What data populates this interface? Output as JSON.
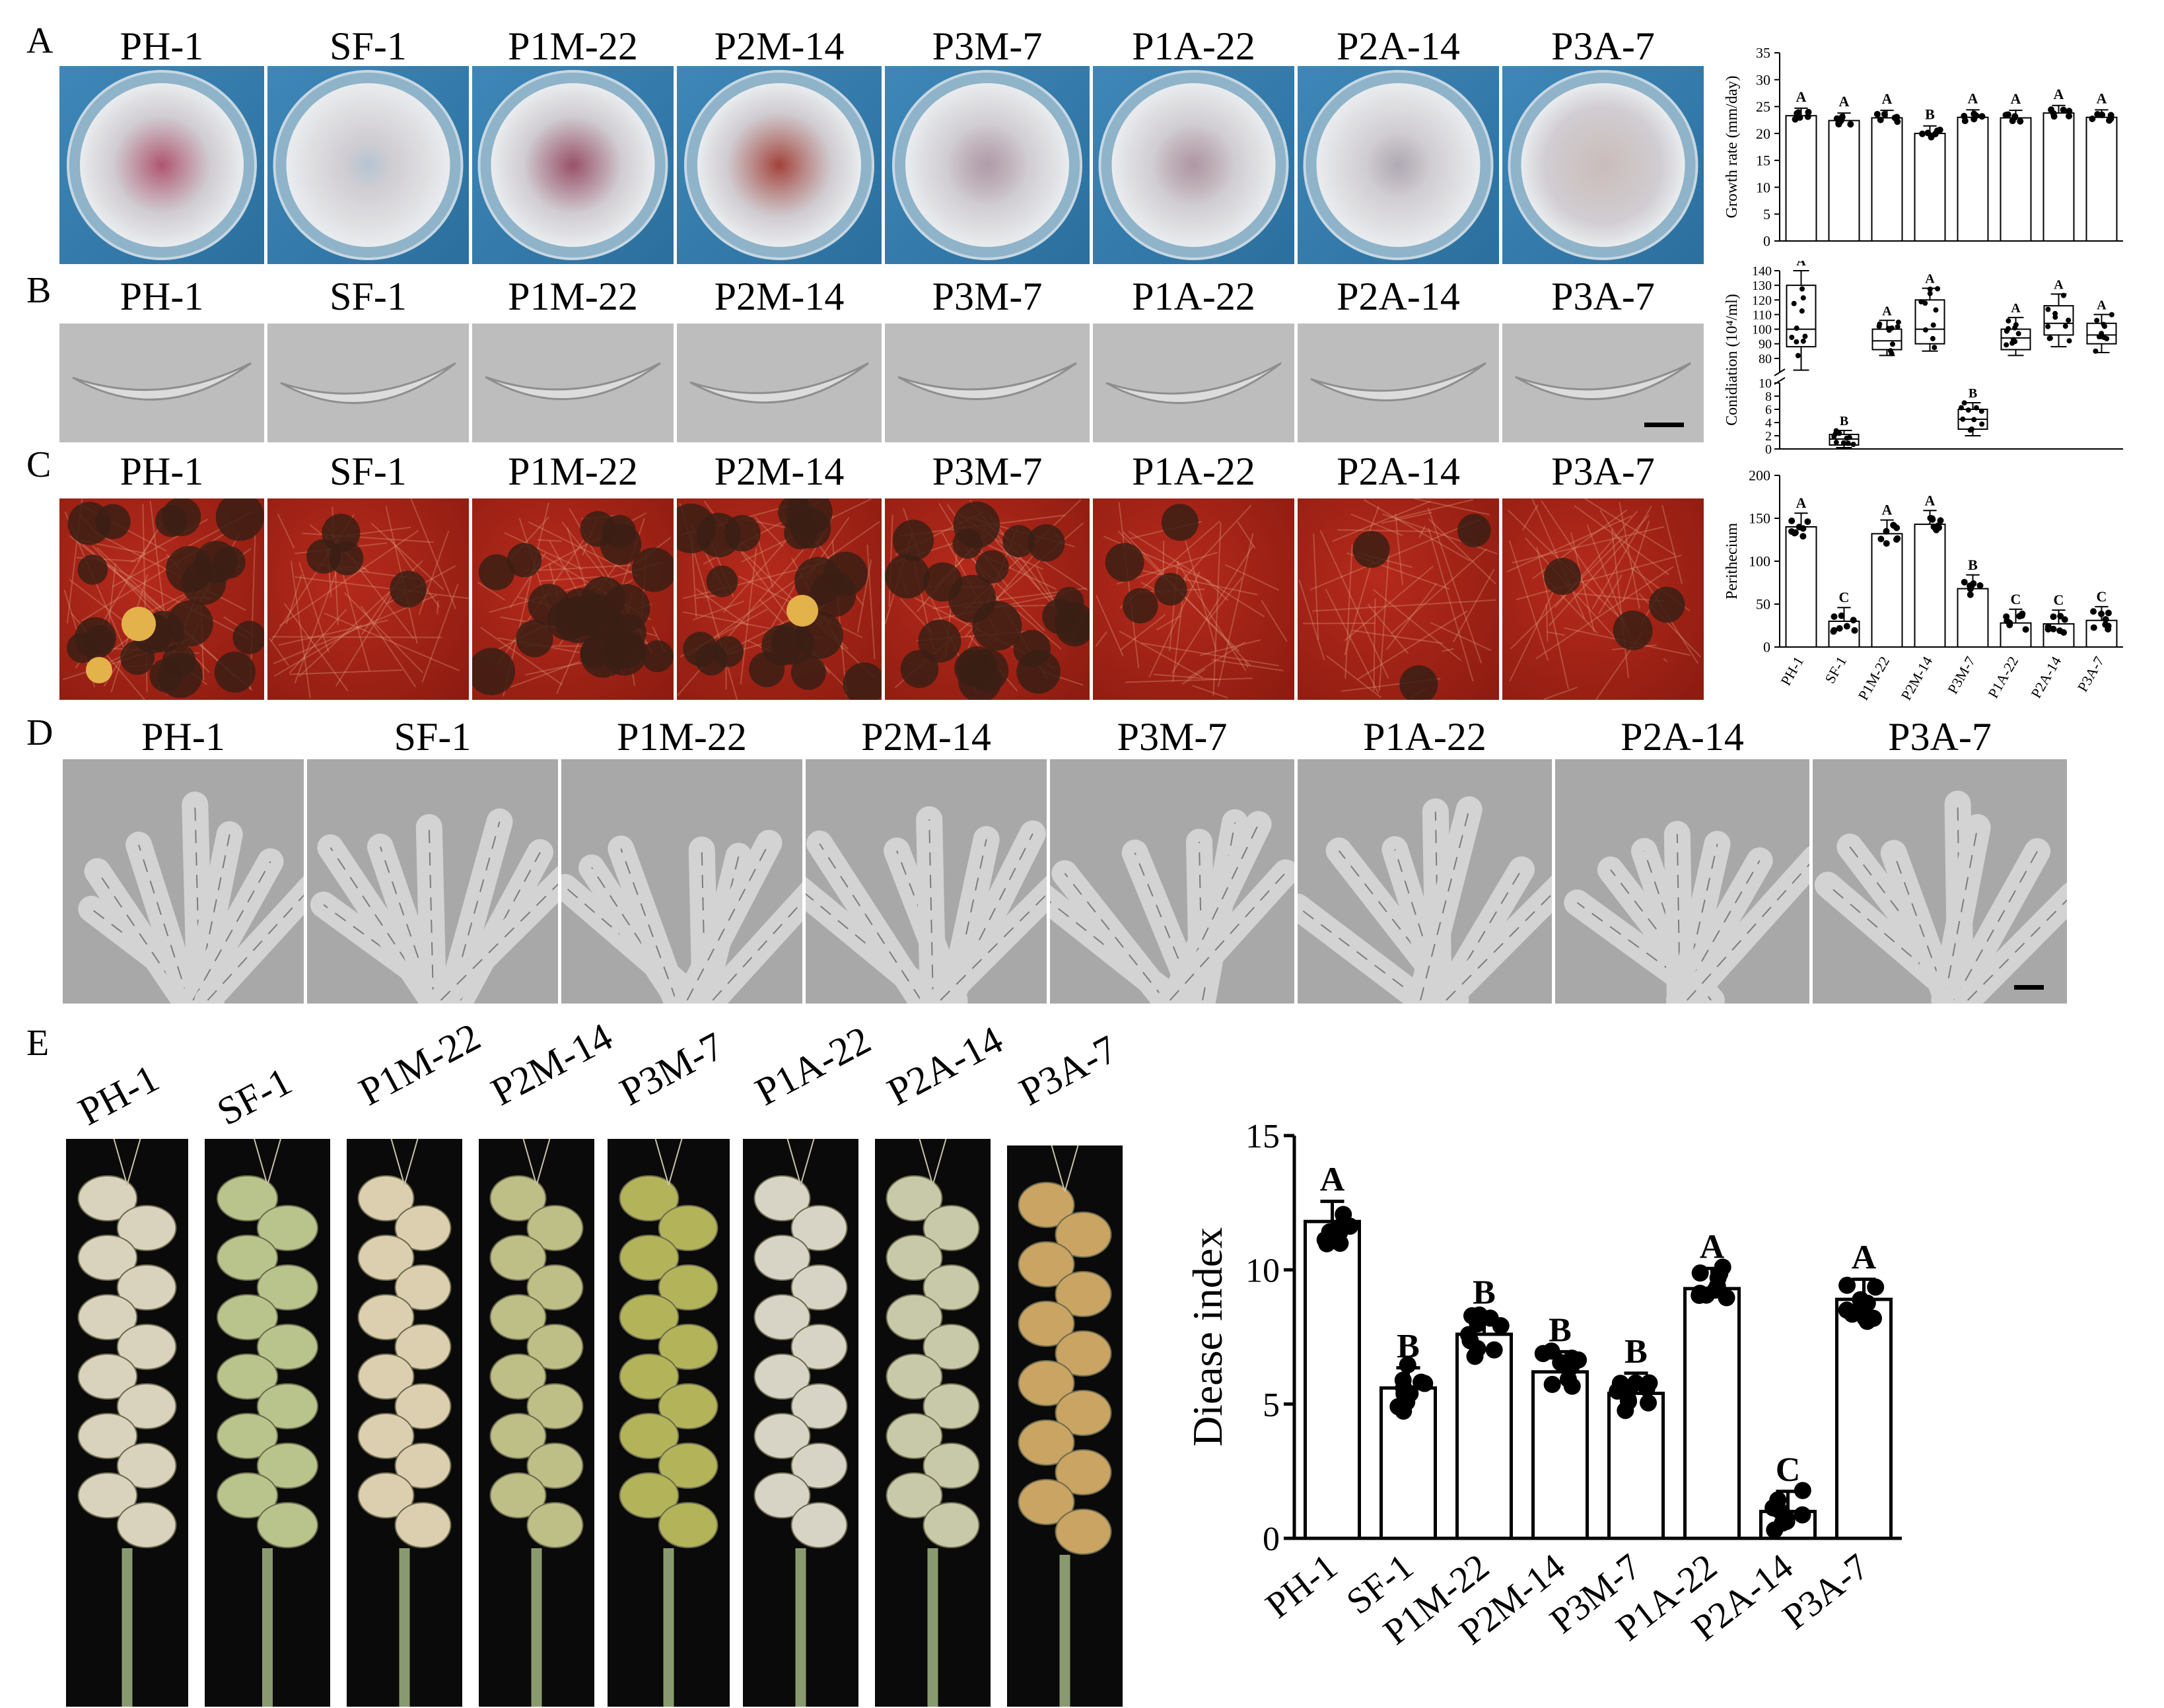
{
  "figure": {
    "panels": [
      "A",
      "B",
      "C",
      "D",
      "E"
    ],
    "strains": [
      "PH-1",
      "SF-1",
      "P1M-22",
      "P2M-14",
      "P3M-7",
      "P1A-22",
      "P2A-14",
      "P3A-7"
    ]
  },
  "chart_data": [
    {
      "id": "growth",
      "type": "bar",
      "ylabel": "Growth rate (mm/day)",
      "ylim": [
        0,
        35
      ],
      "yticks": [
        0,
        5,
        10,
        15,
        20,
        25,
        30,
        35
      ],
      "categories": [
        "PH-1",
        "SF-1",
        "P1M-22",
        "P2M-14",
        "P3M-7",
        "P1A-22",
        "P2A-14",
        "P3A-7"
      ],
      "values": [
        23.3,
        22.4,
        22.9,
        20.0,
        23.0,
        22.9,
        23.8,
        23.0
      ],
      "sig": [
        "A",
        "A",
        "A",
        "B",
        "A",
        "A",
        "A",
        "A"
      ]
    },
    {
      "id": "conidiation",
      "type": "box",
      "ylabel": "Conidiation (10⁴/ml)",
      "ylim_upper": [
        70,
        140
      ],
      "yticks_upper": [
        80,
        90,
        100,
        110,
        120,
        130,
        140
      ],
      "ylim_lower": [
        0,
        10
      ],
      "yticks_lower": [
        0,
        2,
        4,
        6,
        8,
        10
      ],
      "categories": [
        "PH-1",
        "SF-1",
        "P1M-22",
        "P2M-14",
        "P3M-7",
        "P1A-22",
        "P2A-14",
        "P3A-7"
      ],
      "boxes": [
        {
          "min": 72,
          "q1": 88,
          "median": 100,
          "q3": 130,
          "max": 140
        },
        {
          "min": 0.2,
          "q1": 0.6,
          "median": 1.5,
          "q3": 2.2,
          "max": 2.8
        },
        {
          "min": 82,
          "q1": 86,
          "median": 92,
          "q3": 100,
          "max": 106
        },
        {
          "min": 85,
          "q1": 90,
          "median": 100,
          "q3": 120,
          "max": 128
        },
        {
          "min": 2,
          "q1": 3,
          "median": 4.5,
          "q3": 6,
          "max": 7
        },
        {
          "min": 82,
          "q1": 86,
          "median": 94,
          "q3": 100,
          "max": 108
        },
        {
          "min": 88,
          "q1": 96,
          "median": 104,
          "q3": 116,
          "max": 124
        },
        {
          "min": 84,
          "q1": 90,
          "median": 96,
          "q3": 104,
          "max": 110
        }
      ],
      "sig": [
        "A",
        "B",
        "A",
        "A",
        "B",
        "A",
        "A",
        "A"
      ]
    },
    {
      "id": "perithecium",
      "type": "bar",
      "ylabel": "Perithecium",
      "ylim": [
        0,
        200
      ],
      "yticks": [
        0,
        50,
        100,
        150,
        200
      ],
      "categories": [
        "PH-1",
        "SF-1",
        "P1M-22",
        "P2M-14",
        "P3M-7",
        "P1A-22",
        "P2A-14",
        "P3A-7"
      ],
      "values": [
        140,
        30,
        132,
        143,
        68,
        28,
        27,
        31
      ],
      "sig": [
        "A",
        "C",
        "A",
        "A",
        "B",
        "C",
        "C",
        "C"
      ]
    },
    {
      "id": "disease",
      "type": "bar",
      "ylabel": "Diease index",
      "ylim": [
        0,
        15
      ],
      "yticks": [
        0,
        5,
        10,
        15
      ],
      "categories": [
        "PH-1",
        "SF-1",
        "P1M-22",
        "P2M-14",
        "P3M-7",
        "P1A-22",
        "P2A-14",
        "P3A-7"
      ],
      "values": [
        11.8,
        5.6,
        7.6,
        6.2,
        5.4,
        9.3,
        1.0,
        8.9
      ],
      "sig": [
        "A",
        "B",
        "B",
        "B",
        "B",
        "A",
        "C",
        "A"
      ]
    }
  ]
}
